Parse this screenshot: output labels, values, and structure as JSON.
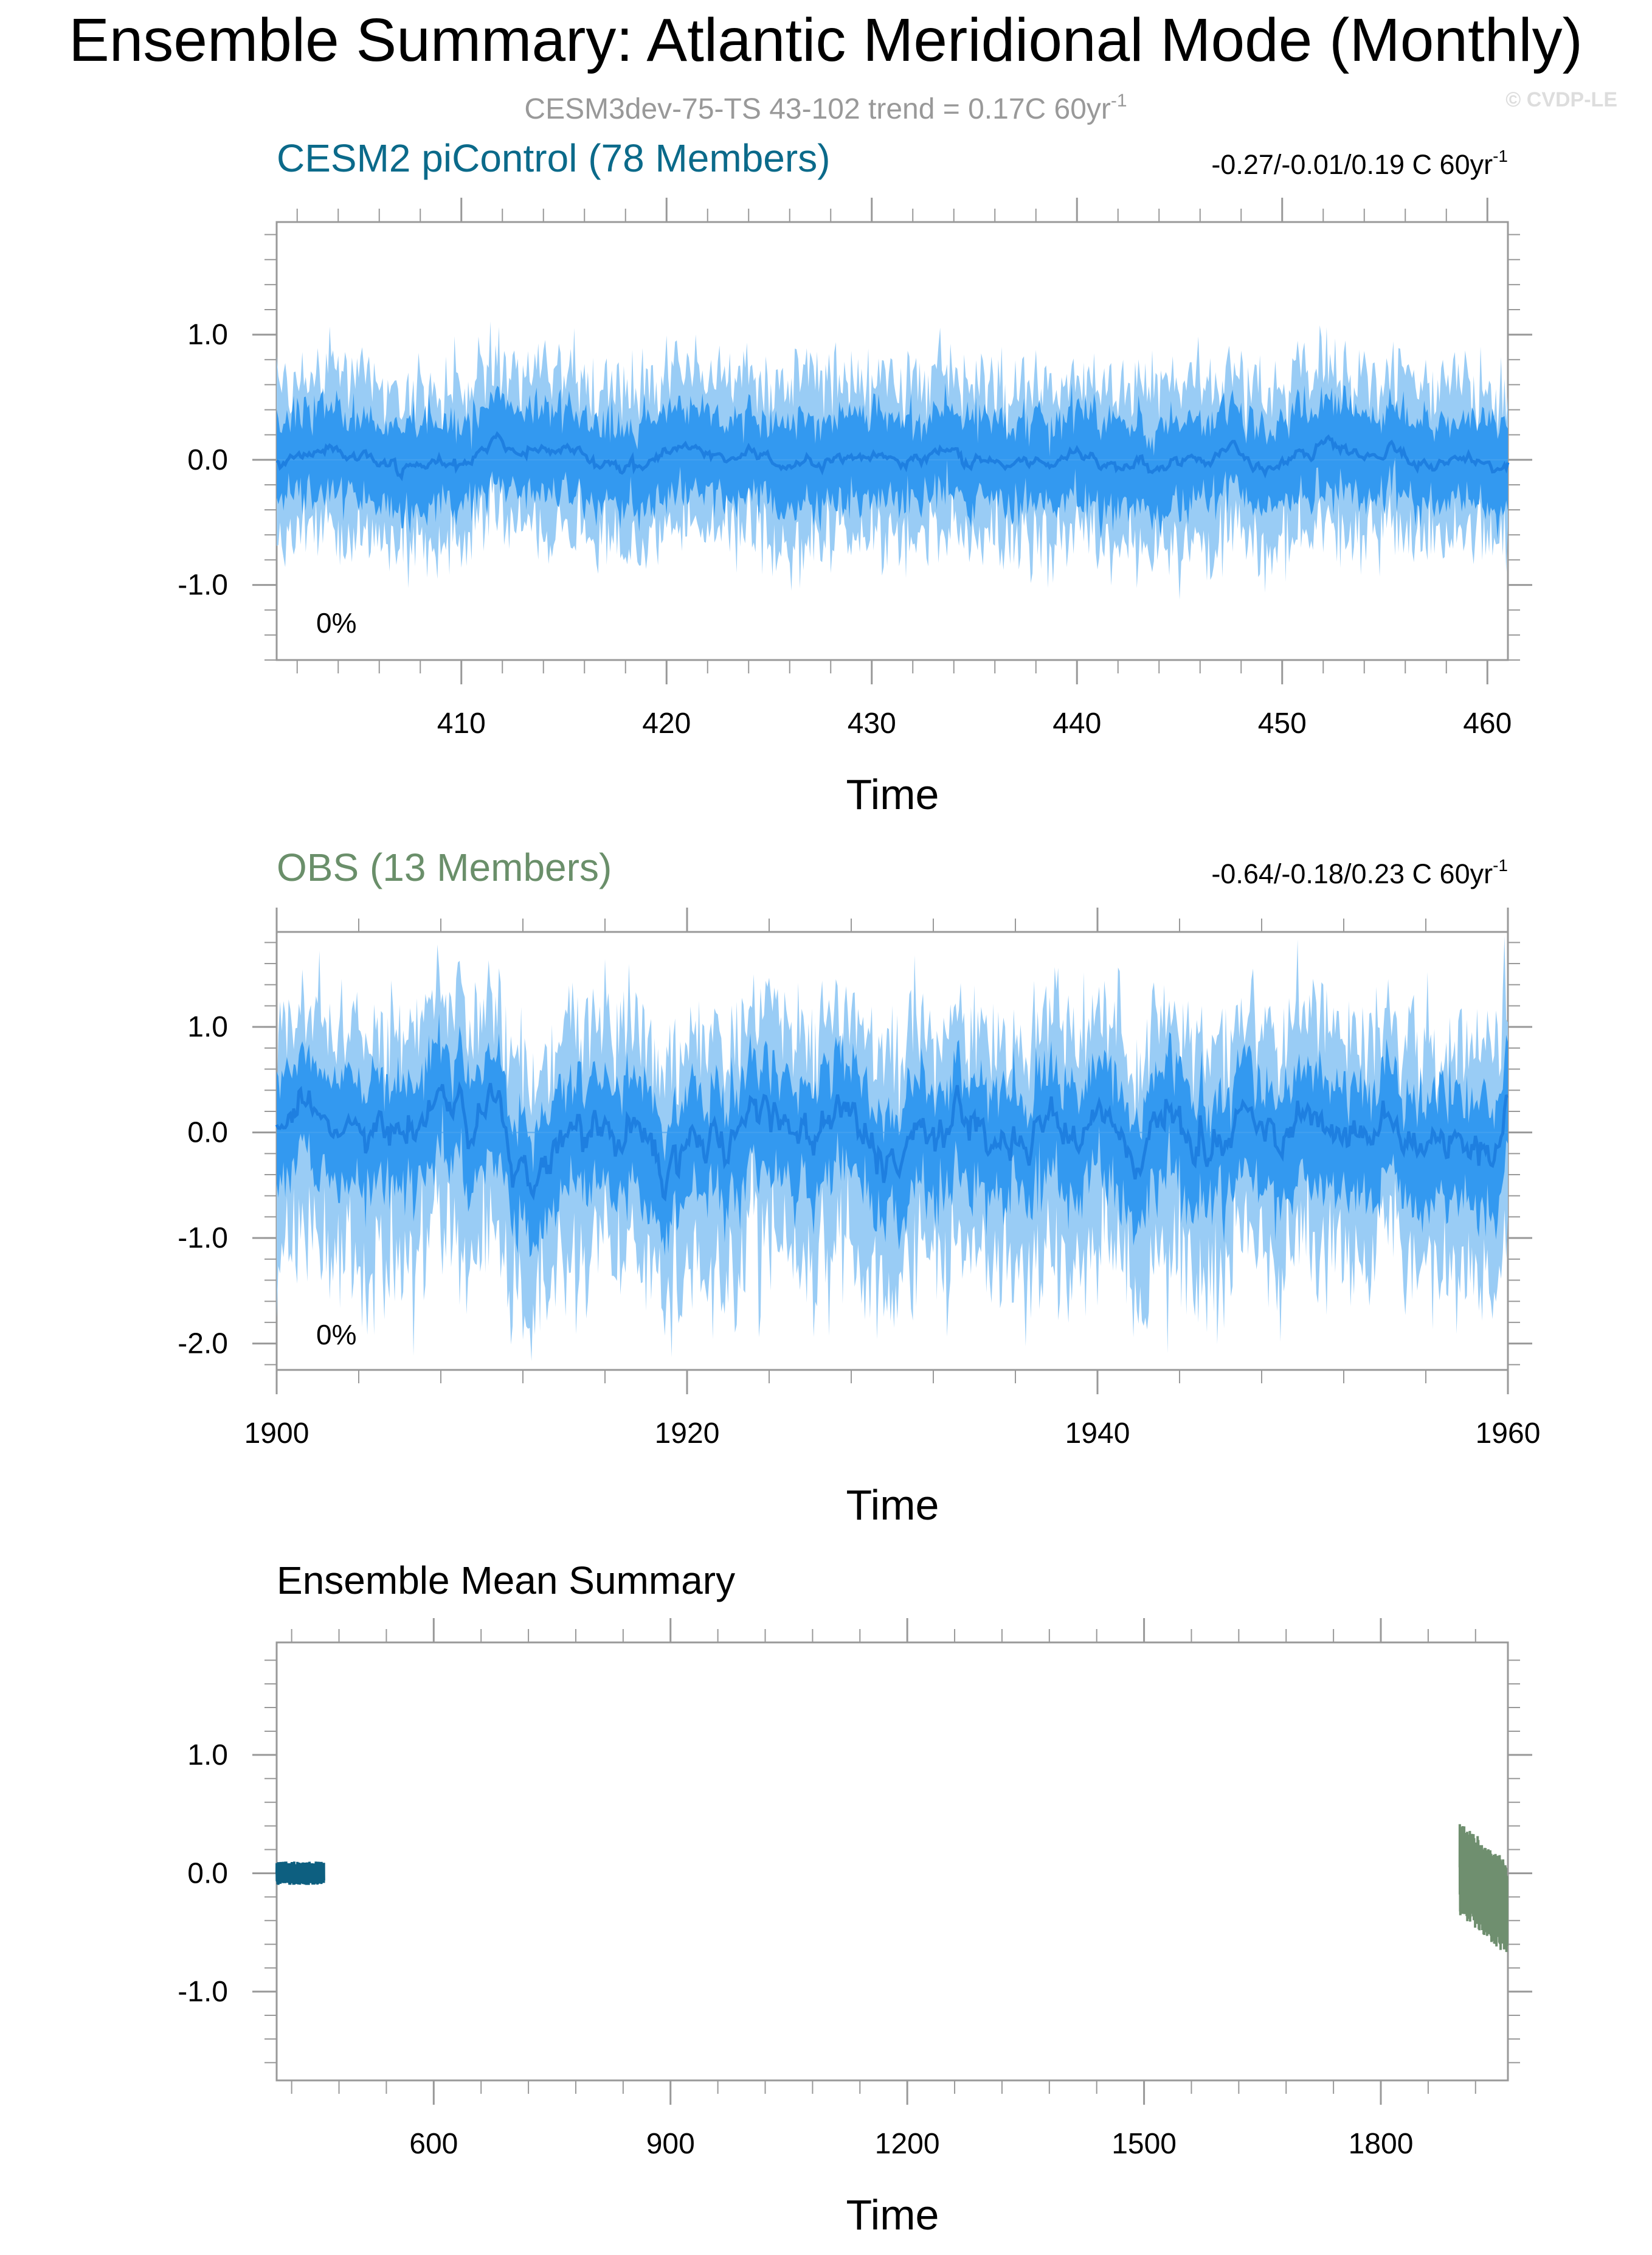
{
  "title": "Ensemble Summary: Atlantic Meridional Mode (Monthly)",
  "subtitle": {
    "text": "CESM3dev-75-TS 43-102 trend = 0.17C 60yr",
    "sup": "-1"
  },
  "watermark": "© CVDP-LE",
  "colors": {
    "outer_band": "#99ccf5",
    "inner_band": "#3399f0",
    "mean_line": "#1e7fe0",
    "cesm2_title": "#0b6a8a",
    "obs_title": "#6a8f6a",
    "cesm2_mean": "#0d5f80",
    "obs_mean": "#6f8f6f",
    "subtitle": "#999999",
    "axis": "#999999"
  },
  "chart_data": [
    {
      "type": "area",
      "title": "CESM2 piControl (78 Members)",
      "trend_text": "-0.27/-0.01/0.19 C 60yr",
      "trend_sup": "-1",
      "pct_label": "0%",
      "xlabel": "Time",
      "ylabel": "",
      "xlim": [
        401,
        461
      ],
      "ylim": [
        -1.6,
        1.9
      ],
      "xticks": [
        410,
        420,
        430,
        440,
        450,
        460
      ],
      "yticks": [
        -1.0,
        0.0,
        1.0
      ],
      "ytick_labels": [
        "-1.0",
        "0.0",
        "1.0"
      ],
      "zero_line": true,
      "series": [
        {
          "role": "outer_range",
          "x_start": 401,
          "step_years": 0.25,
          "approx_lower": -0.62,
          "approx_upper": 0.62
        },
        {
          "role": "inner_range",
          "x_start": 401,
          "step_years": 0.25,
          "approx_lower": -0.33,
          "approx_upper": 0.33
        },
        {
          "role": "mean",
          "x_start": 401,
          "step_years": 0.25,
          "approx_amplitude": 0.08
        }
      ]
    },
    {
      "type": "area",
      "title": "OBS (13 Members)",
      "trend_text": "-0.64/-0.18/0.23 C 60yr",
      "trend_sup": "-1",
      "pct_label": "0%",
      "xlabel": "Time",
      "ylabel": "",
      "xlim": [
        1900,
        1960
      ],
      "ylim": [
        -2.25,
        1.9
      ],
      "xticks": [
        1900,
        1920,
        1940,
        1960
      ],
      "yticks": [
        -2.0,
        -1.0,
        0.0,
        1.0
      ],
      "ytick_labels": [
        "-2.0",
        "-1.0",
        "0.0",
        "1.0"
      ],
      "zero_line": true,
      "series": [
        {
          "role": "outer_range",
          "x_start": 1900,
          "step_years": 0.25,
          "approx_lower": -1.2,
          "approx_upper": 0.95,
          "min_dips": -2.15
        },
        {
          "role": "inner_range",
          "x_start": 1900,
          "step_years": 0.25,
          "approx_lower": -0.55,
          "approx_upper": 0.45
        },
        {
          "role": "mean",
          "x_start": 1900,
          "step_years": 0.25,
          "approx_amplitude": 0.3
        }
      ]
    },
    {
      "type": "line",
      "title": "Ensemble Mean Summary",
      "xlabel": "Time",
      "ylabel": "",
      "xlim": [
        401,
        1961
      ],
      "ylim": [
        -1.75,
        1.95
      ],
      "xticks": [
        600,
        900,
        1200,
        1500,
        1800
      ],
      "yticks": [
        -1.0,
        0.0,
        1.0
      ],
      "ytick_labels": [
        "-1.0",
        "0.0",
        "1.0"
      ],
      "zero_line": false,
      "series": [
        {
          "role": "cesm2_mean",
          "x_range": [
            401,
            461
          ],
          "approx_lower": -0.1,
          "approx_upper": 0.1
        },
        {
          "role": "obs_mean",
          "x_range": [
            1900,
            1960
          ],
          "approx_lower": -0.6,
          "approx_upper": 0.42
        }
      ]
    }
  ]
}
